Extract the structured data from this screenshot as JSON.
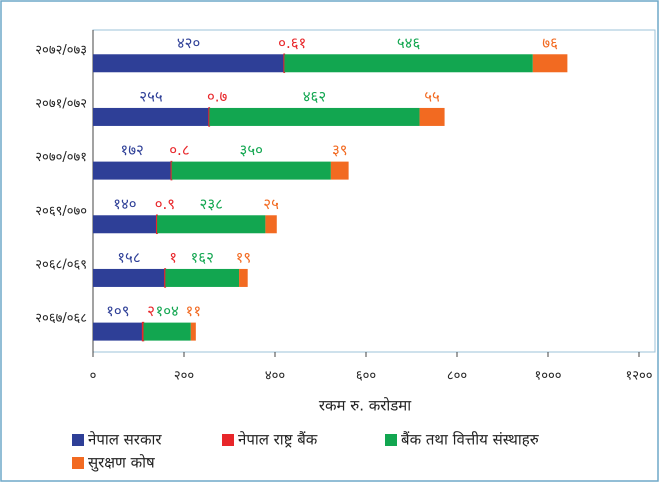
{
  "chart_data": {
    "type": "bar",
    "orientation": "horizontal",
    "stacked": true,
    "categories": [
      "२०७२/०७३",
      "२०७१/०७२",
      "२०७०/०७१",
      "२०६९/०७०",
      "२०६८/०६९",
      "२०६७/०६८"
    ],
    "series": [
      {
        "name": "नेपाल सरकार",
        "color": "#2e3f97",
        "values": [
          420,
          255,
          172,
          140,
          158,
          109
        ],
        "value_labels": [
          "४२०",
          "२५५",
          "१७२",
          "१४०",
          "१५८",
          "१०९"
        ]
      },
      {
        "name": "नेपाल राष्ट्र बैंक",
        "color": "#e8262a",
        "values": [
          0.61,
          0.7,
          0.8,
          0.9,
          1,
          2
        ],
        "value_labels": [
          "०.६१",
          "०.७",
          "०.८",
          "०.९",
          "१",
          "२"
        ]
      },
      {
        "name": "बैंक तथा वित्तीय संस्थाहरु",
        "color": "#12a650",
        "values": [
          546,
          462,
          350,
          238,
          162,
          104
        ],
        "value_labels": [
          "५४६",
          "४६२",
          "३५०",
          "२३८",
          "१६२",
          "१०४"
        ]
      },
      {
        "name": "सुरक्षण कोष",
        "color": "#f26a21",
        "values": [
          76,
          55,
          39,
          25,
          19,
          11
        ],
        "value_labels": [
          "७६",
          "५५",
          "३९",
          "२५",
          "१९",
          "११"
        ]
      }
    ],
    "x_label": "रकम रु. करोडमा",
    "xlim": [
      0,
      1200
    ],
    "xticks": [
      {
        "value": 0,
        "label": "०"
      },
      {
        "value": 200,
        "label": "२००"
      },
      {
        "value": 400,
        "label": "४००"
      },
      {
        "value": 600,
        "label": "६००"
      },
      {
        "value": 800,
        "label": "८००"
      },
      {
        "value": 1000,
        "label": "१०००"
      },
      {
        "value": 1200,
        "label": "१२००"
      }
    ]
  }
}
